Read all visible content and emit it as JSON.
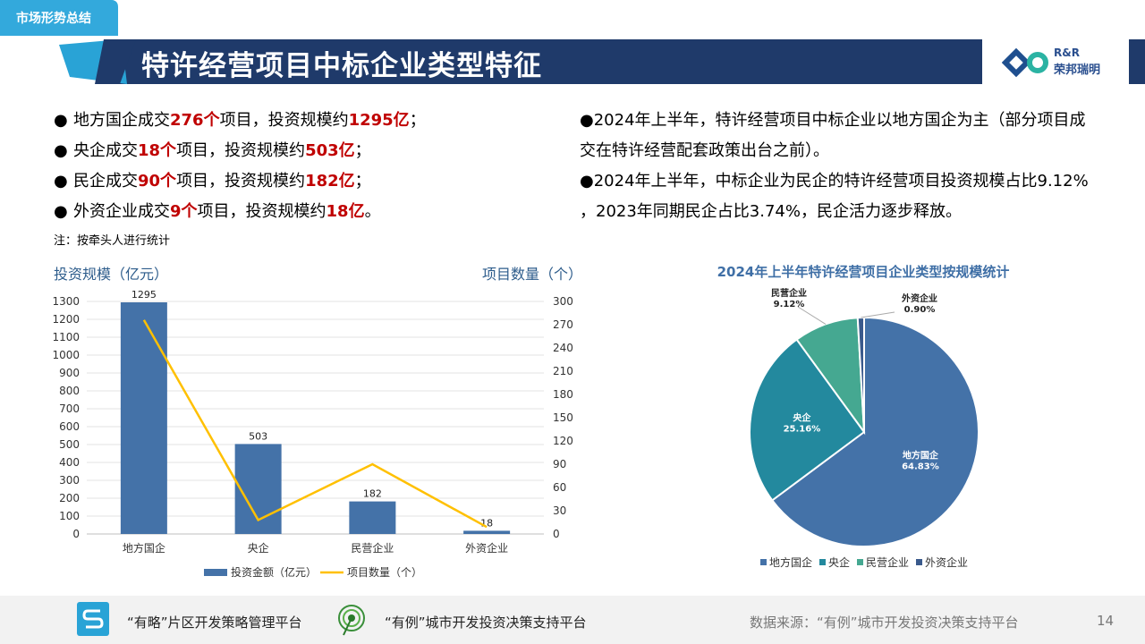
{
  "header": {
    "section_tag": "市场形势总结",
    "title": "特许经营项目中标企业类型特征",
    "logo_line1": "R&R",
    "logo_line2": "荣邦瑞明",
    "colors": {
      "navy": "#1f3a6a",
      "teal": "#29a3d6"
    }
  },
  "left_bullets": [
    {
      "a": "地方国企成交",
      "n1": "276个",
      "b": "项目，投资规模约",
      "n2": "1295亿",
      "c": "；"
    },
    {
      "a": "央企成交",
      "n1": "18个",
      "b": "项目，投资规模约",
      "n2": "503亿",
      "c": "；"
    },
    {
      "a": "民企成交",
      "n1": "90个",
      "b": "项目，投资规模约",
      "n2": "182亿",
      "c": "；"
    },
    {
      "a": "外资企业成交",
      "n1": "9个",
      "b": "项目，投资规模约",
      "n2": "18亿",
      "c": "。"
    }
  ],
  "bullet_glyph": "●",
  "note": "注：按牵头人进行统计",
  "right_paragraph": [
    "●2024年上半年，特许经营项目中标企业以地方国企为主（部分项目成",
    "交在特许经营配套政策出台之前）。",
    "●2024年上半年，中标企业为民企的特许经营项目投资规模占比9.12%",
    "，2023年同期民企占比3.74%，民企活力逐步释放。"
  ],
  "chart_data": [
    {
      "type": "bar",
      "ylabel": "投资规模（亿元）",
      "y2label": "项目数量（个）",
      "categories": [
        "地方国企",
        "央企",
        "民营企业",
        "外资企业"
      ],
      "series": [
        {
          "name": "投资金额（亿元）",
          "type": "bar",
          "values": [
            1295,
            503,
            182,
            18
          ],
          "color": "#4472a8"
        },
        {
          "name": "项目数量（个）",
          "type": "line",
          "axis": "right",
          "values": [
            276,
            18,
            90,
            9
          ],
          "color": "#ffc000"
        }
      ],
      "ylim": [
        0,
        1300
      ],
      "y2lim": [
        0,
        300
      ],
      "yticks": [
        0,
        100,
        200,
        300,
        400,
        500,
        600,
        700,
        800,
        900,
        1000,
        1100,
        1200,
        1300
      ],
      "y2ticks": [
        0,
        30,
        60,
        90,
        120,
        150,
        180,
        210,
        240,
        270,
        300
      ],
      "grid": true,
      "legend": "bottom"
    },
    {
      "type": "pie",
      "title": "2024年上半年特许经营项目企业类型按规模统计",
      "slices": [
        {
          "label": "地方国企",
          "pct": "64.83%",
          "value": 64.83,
          "color": "#4472a8"
        },
        {
          "label": "央企",
          "pct": "25.16%",
          "value": 25.16,
          "color": "#23899e"
        },
        {
          "label": "民营企业",
          "pct": "9.12%",
          "value": 9.12,
          "color": "#45a891"
        },
        {
          "label": "外资企业",
          "pct": "0.90%",
          "value": 0.9,
          "color": "#3a5a8c"
        }
      ],
      "legend": "bottom"
    }
  ],
  "footer": {
    "platform1": "“有略”片区开发策略管理平台",
    "platform2": "“有例”城市开发投资决策支持平台",
    "source": "数据来源：“有例”城市开发投资决策支持平台",
    "page": "14"
  }
}
